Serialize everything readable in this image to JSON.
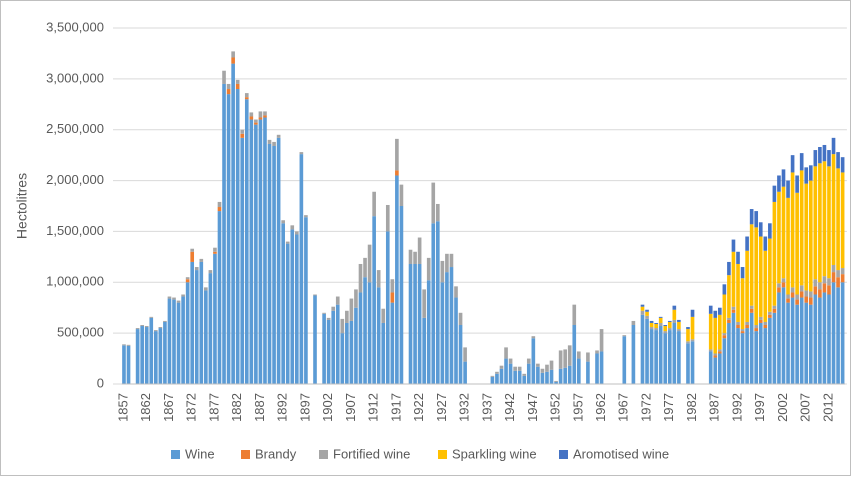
{
  "chart_data": {
    "type": "stacked-bar",
    "y_label": "Hectolitres",
    "categories": [
      "1857",
      null,
      null,
      null,
      null,
      "1862",
      null,
      null,
      null,
      null,
      "1867",
      null,
      null,
      null,
      null,
      "1872",
      null,
      null,
      null,
      null,
      "1877",
      null,
      null,
      null,
      null,
      "1882",
      null,
      null,
      null,
      null,
      "1887",
      null,
      null,
      null,
      null,
      "1892",
      null,
      null,
      null,
      null,
      "1897",
      null,
      null,
      null,
      null,
      "1902",
      null,
      null,
      null,
      null,
      "1907",
      null,
      null,
      null,
      null,
      "1912",
      null,
      null,
      null,
      null,
      "1917",
      null,
      null,
      null,
      null,
      "1922",
      null,
      null,
      null,
      null,
      "1927",
      null,
      null,
      null,
      null,
      "1932",
      null,
      null,
      null,
      null,
      "1937",
      null,
      null,
      null,
      null,
      "1942",
      null,
      null,
      null,
      null,
      "1947",
      null,
      null,
      null,
      null,
      "1952",
      null,
      null,
      null,
      null,
      "1957",
      null,
      null,
      null,
      null,
      "1962",
      null,
      null,
      null,
      null,
      "1967",
      null,
      null,
      null,
      null,
      "1972",
      null,
      null,
      null,
      null,
      "1977",
      null,
      null,
      null,
      null,
      "1982",
      null,
      null,
      null,
      null,
      "1987",
      null,
      null,
      null,
      null,
      "1992",
      null,
      null,
      null,
      null,
      "1997",
      null,
      null,
      null,
      null,
      "2002",
      null,
      null,
      null,
      null,
      "2007",
      null,
      null,
      null,
      null,
      "2012",
      null,
      null,
      null
    ],
    "series": [
      {
        "name": "Wine",
        "color": "#5b9bd5",
        "values": [
          380000,
          375000,
          0,
          540000,
          570000,
          560000,
          650000,
          520000,
          550000,
          610000,
          840000,
          830000,
          800000,
          860000,
          1000000,
          1200000,
          1120000,
          1200000,
          920000,
          1090000,
          1280000,
          1700000,
          2950000,
          2850000,
          3150000,
          2900000,
          2420000,
          2800000,
          2600000,
          2550000,
          2600000,
          2620000,
          2360000,
          2340000,
          2420000,
          1580000,
          1380000,
          1520000,
          1470000,
          2260000,
          1640000,
          0,
          870000,
          0,
          690000,
          630000,
          720000,
          780000,
          500000,
          600000,
          620000,
          750000,
          900000,
          1050000,
          1000000,
          1650000,
          950000,
          600000,
          1500000,
          800000,
          2050000,
          1750000,
          0,
          1180000,
          1180000,
          1180000,
          650000,
          1020000,
          1580000,
          1600000,
          1000000,
          1100000,
          1150000,
          850000,
          580000,
          220000,
          0,
          0,
          0,
          0,
          0,
          70000,
          100000,
          150000,
          250000,
          200000,
          130000,
          130000,
          80000,
          200000,
          450000,
          170000,
          110000,
          120000,
          140000,
          20000,
          150000,
          160000,
          180000,
          580000,
          250000,
          0,
          220000,
          0,
          300000,
          320000,
          0,
          0,
          0,
          0,
          470000,
          0,
          580000,
          0,
          680000,
          640000,
          540000,
          530000,
          570000,
          500000,
          530000,
          600000,
          520000,
          0,
          400000,
          420000,
          0,
          0,
          0,
          320000,
          260000,
          300000,
          450000,
          600000,
          700000,
          550000,
          500000,
          550000,
          700000,
          520000,
          600000,
          550000,
          650000,
          700000,
          900000,
          950000,
          800000,
          850000,
          780000,
          850000,
          800000,
          780000,
          880000,
          850000,
          900000,
          880000,
          1000000,
          950000,
          1000000
        ]
      },
      {
        "name": "Brandy",
        "color": "#ed7d31",
        "values": [
          0,
          0,
          0,
          0,
          0,
          0,
          0,
          0,
          0,
          0,
          0,
          0,
          0,
          0,
          30000,
          100000,
          0,
          0,
          0,
          0,
          20000,
          40000,
          0,
          50000,
          60000,
          50000,
          40000,
          20000,
          30000,
          20000,
          20000,
          20000,
          0,
          0,
          0,
          0,
          0,
          0,
          0,
          0,
          0,
          0,
          0,
          0,
          0,
          0,
          0,
          0,
          0,
          0,
          0,
          0,
          0,
          0,
          0,
          0,
          0,
          0,
          0,
          100000,
          50000,
          0,
          0,
          0,
          0,
          0,
          0,
          0,
          0,
          0,
          0,
          0,
          0,
          0,
          0,
          0,
          0,
          0,
          0,
          0,
          0,
          0,
          0,
          0,
          0,
          0,
          0,
          0,
          0,
          0,
          0,
          0,
          0,
          0,
          0,
          0,
          0,
          0,
          0,
          0,
          0,
          0,
          0,
          0,
          0,
          0,
          0,
          0,
          0,
          0,
          0,
          0,
          0,
          0,
          0,
          0,
          0,
          0,
          0,
          0,
          0,
          0,
          0,
          0,
          0,
          0,
          0,
          0,
          0,
          0,
          20000,
          20000,
          30000,
          30000,
          30000,
          30000,
          20000,
          30000,
          40000,
          30000,
          30000,
          30000,
          30000,
          40000,
          50000,
          50000,
          40000,
          50000,
          50000,
          60000,
          60000,
          70000,
          80000,
          80000,
          90000,
          90000,
          100000,
          100000,
          80000
        ]
      },
      {
        "name": "Fortified wine",
        "color": "#a5a5a5",
        "values": [
          10000,
          10000,
          0,
          10000,
          10000,
          10000,
          10000,
          10000,
          10000,
          10000,
          20000,
          20000,
          20000,
          20000,
          20000,
          30000,
          30000,
          30000,
          30000,
          30000,
          40000,
          50000,
          130000,
          50000,
          60000,
          40000,
          40000,
          40000,
          40000,
          30000,
          60000,
          40000,
          40000,
          40000,
          30000,
          30000,
          20000,
          40000,
          30000,
          20000,
          20000,
          0,
          10000,
          0,
          10000,
          20000,
          40000,
          80000,
          140000,
          120000,
          220000,
          180000,
          280000,
          190000,
          370000,
          240000,
          170000,
          140000,
          260000,
          130000,
          310000,
          210000,
          0,
          140000,
          120000,
          260000,
          280000,
          220000,
          400000,
          170000,
          210000,
          180000,
          130000,
          110000,
          120000,
          140000,
          0,
          0,
          0,
          0,
          0,
          10000,
          20000,
          30000,
          110000,
          50000,
          40000,
          40000,
          20000,
          50000,
          20000,
          30000,
          40000,
          70000,
          90000,
          10000,
          180000,
          180000,
          200000,
          200000,
          70000,
          0,
          90000,
          0,
          30000,
          220000,
          0,
          0,
          0,
          0,
          10000,
          0,
          40000,
          0,
          40000,
          30000,
          20000,
          20000,
          30000,
          20000,
          20000,
          30000,
          20000,
          0,
          20000,
          20000,
          0,
          0,
          0,
          20000,
          20000,
          20000,
          20000,
          20000,
          30000,
          30000,
          20000,
          30000,
          30000,
          30000,
          30000,
          30000,
          30000,
          30000,
          40000,
          40000,
          40000,
          50000,
          50000,
          60000,
          60000,
          60000,
          70000,
          70000,
          70000,
          70000,
          70000,
          70000,
          60000
        ]
      },
      {
        "name": "Sparkling wine",
        "color": "#ffc000",
        "values": [
          0,
          0,
          0,
          0,
          0,
          0,
          0,
          0,
          0,
          0,
          0,
          0,
          0,
          0,
          0,
          0,
          0,
          0,
          0,
          0,
          0,
          0,
          0,
          0,
          0,
          0,
          0,
          0,
          0,
          0,
          0,
          0,
          0,
          0,
          0,
          0,
          0,
          0,
          0,
          0,
          0,
          0,
          0,
          0,
          0,
          0,
          0,
          0,
          0,
          0,
          0,
          0,
          0,
          0,
          0,
          0,
          0,
          0,
          0,
          0,
          0,
          0,
          0,
          0,
          0,
          0,
          0,
          0,
          0,
          0,
          0,
          0,
          0,
          0,
          0,
          0,
          0,
          0,
          0,
          0,
          0,
          0,
          0,
          0,
          0,
          0,
          0,
          0,
          0,
          0,
          0,
          0,
          0,
          0,
          0,
          0,
          0,
          0,
          0,
          0,
          0,
          0,
          0,
          0,
          0,
          0,
          0,
          0,
          0,
          0,
          0,
          0,
          0,
          0,
          40000,
          40000,
          40000,
          40000,
          50000,
          50000,
          60000,
          100000,
          70000,
          0,
          120000,
          220000,
          0,
          0,
          0,
          350000,
          350000,
          340000,
          380000,
          420000,
          540000,
          570000,
          500000,
          700000,
          800000,
          960000,
          790000,
          700000,
          720000,
          1020000,
          900000,
          900000,
          950000,
          1130000,
          1000000,
          1130000,
          1050000,
          1090000,
          1110000,
          1170000,
          1130000,
          1100000,
          1090000,
          1000000,
          940000
        ]
      },
      {
        "name": "Aromotised wine",
        "color": "#4472c4",
        "values": [
          0,
          0,
          0,
          0,
          0,
          0,
          0,
          0,
          0,
          0,
          0,
          0,
          0,
          0,
          0,
          0,
          0,
          0,
          0,
          0,
          0,
          0,
          0,
          0,
          0,
          0,
          0,
          0,
          0,
          0,
          0,
          0,
          0,
          0,
          0,
          0,
          0,
          0,
          0,
          0,
          0,
          0,
          0,
          0,
          0,
          0,
          0,
          0,
          0,
          0,
          0,
          0,
          0,
          0,
          0,
          0,
          0,
          0,
          0,
          0,
          0,
          0,
          0,
          0,
          0,
          0,
          0,
          0,
          0,
          0,
          0,
          0,
          0,
          0,
          0,
          0,
          0,
          0,
          0,
          0,
          0,
          0,
          0,
          0,
          0,
          0,
          0,
          0,
          0,
          0,
          0,
          0,
          0,
          0,
          0,
          0,
          0,
          0,
          0,
          0,
          0,
          0,
          0,
          0,
          0,
          0,
          0,
          0,
          0,
          0,
          0,
          0,
          0,
          0,
          20000,
          20000,
          20000,
          10000,
          10000,
          10000,
          10000,
          40000,
          20000,
          0,
          20000,
          70000,
          0,
          0,
          0,
          80000,
          70000,
          70000,
          100000,
          130000,
          120000,
          120000,
          110000,
          140000,
          150000,
          160000,
          140000,
          140000,
          150000,
          160000,
          160000,
          170000,
          170000,
          170000,
          170000,
          170000,
          160000,
          150000,
          160000,
          160000,
          160000,
          160000,
          160000,
          160000,
          150000
        ]
      }
    ],
    "ylim": [
      0,
      3500000
    ],
    "yticks": [
      0,
      {
        "value": 500000,
        "label": "500,000"
      },
      {
        "value": 1000000,
        "label": "1,000,000"
      },
      {
        "value": 1500000,
        "label": "1,500,000"
      },
      {
        "value": 2000000,
        "label": "2,000,000"
      },
      {
        "value": 2500000,
        "label": "2,500,000"
      },
      {
        "value": 3000000,
        "label": "3,000,000"
      },
      {
        "value": 3500000,
        "label": "3,500,000"
      }
    ],
    "grid": true,
    "legend": "bottom"
  }
}
